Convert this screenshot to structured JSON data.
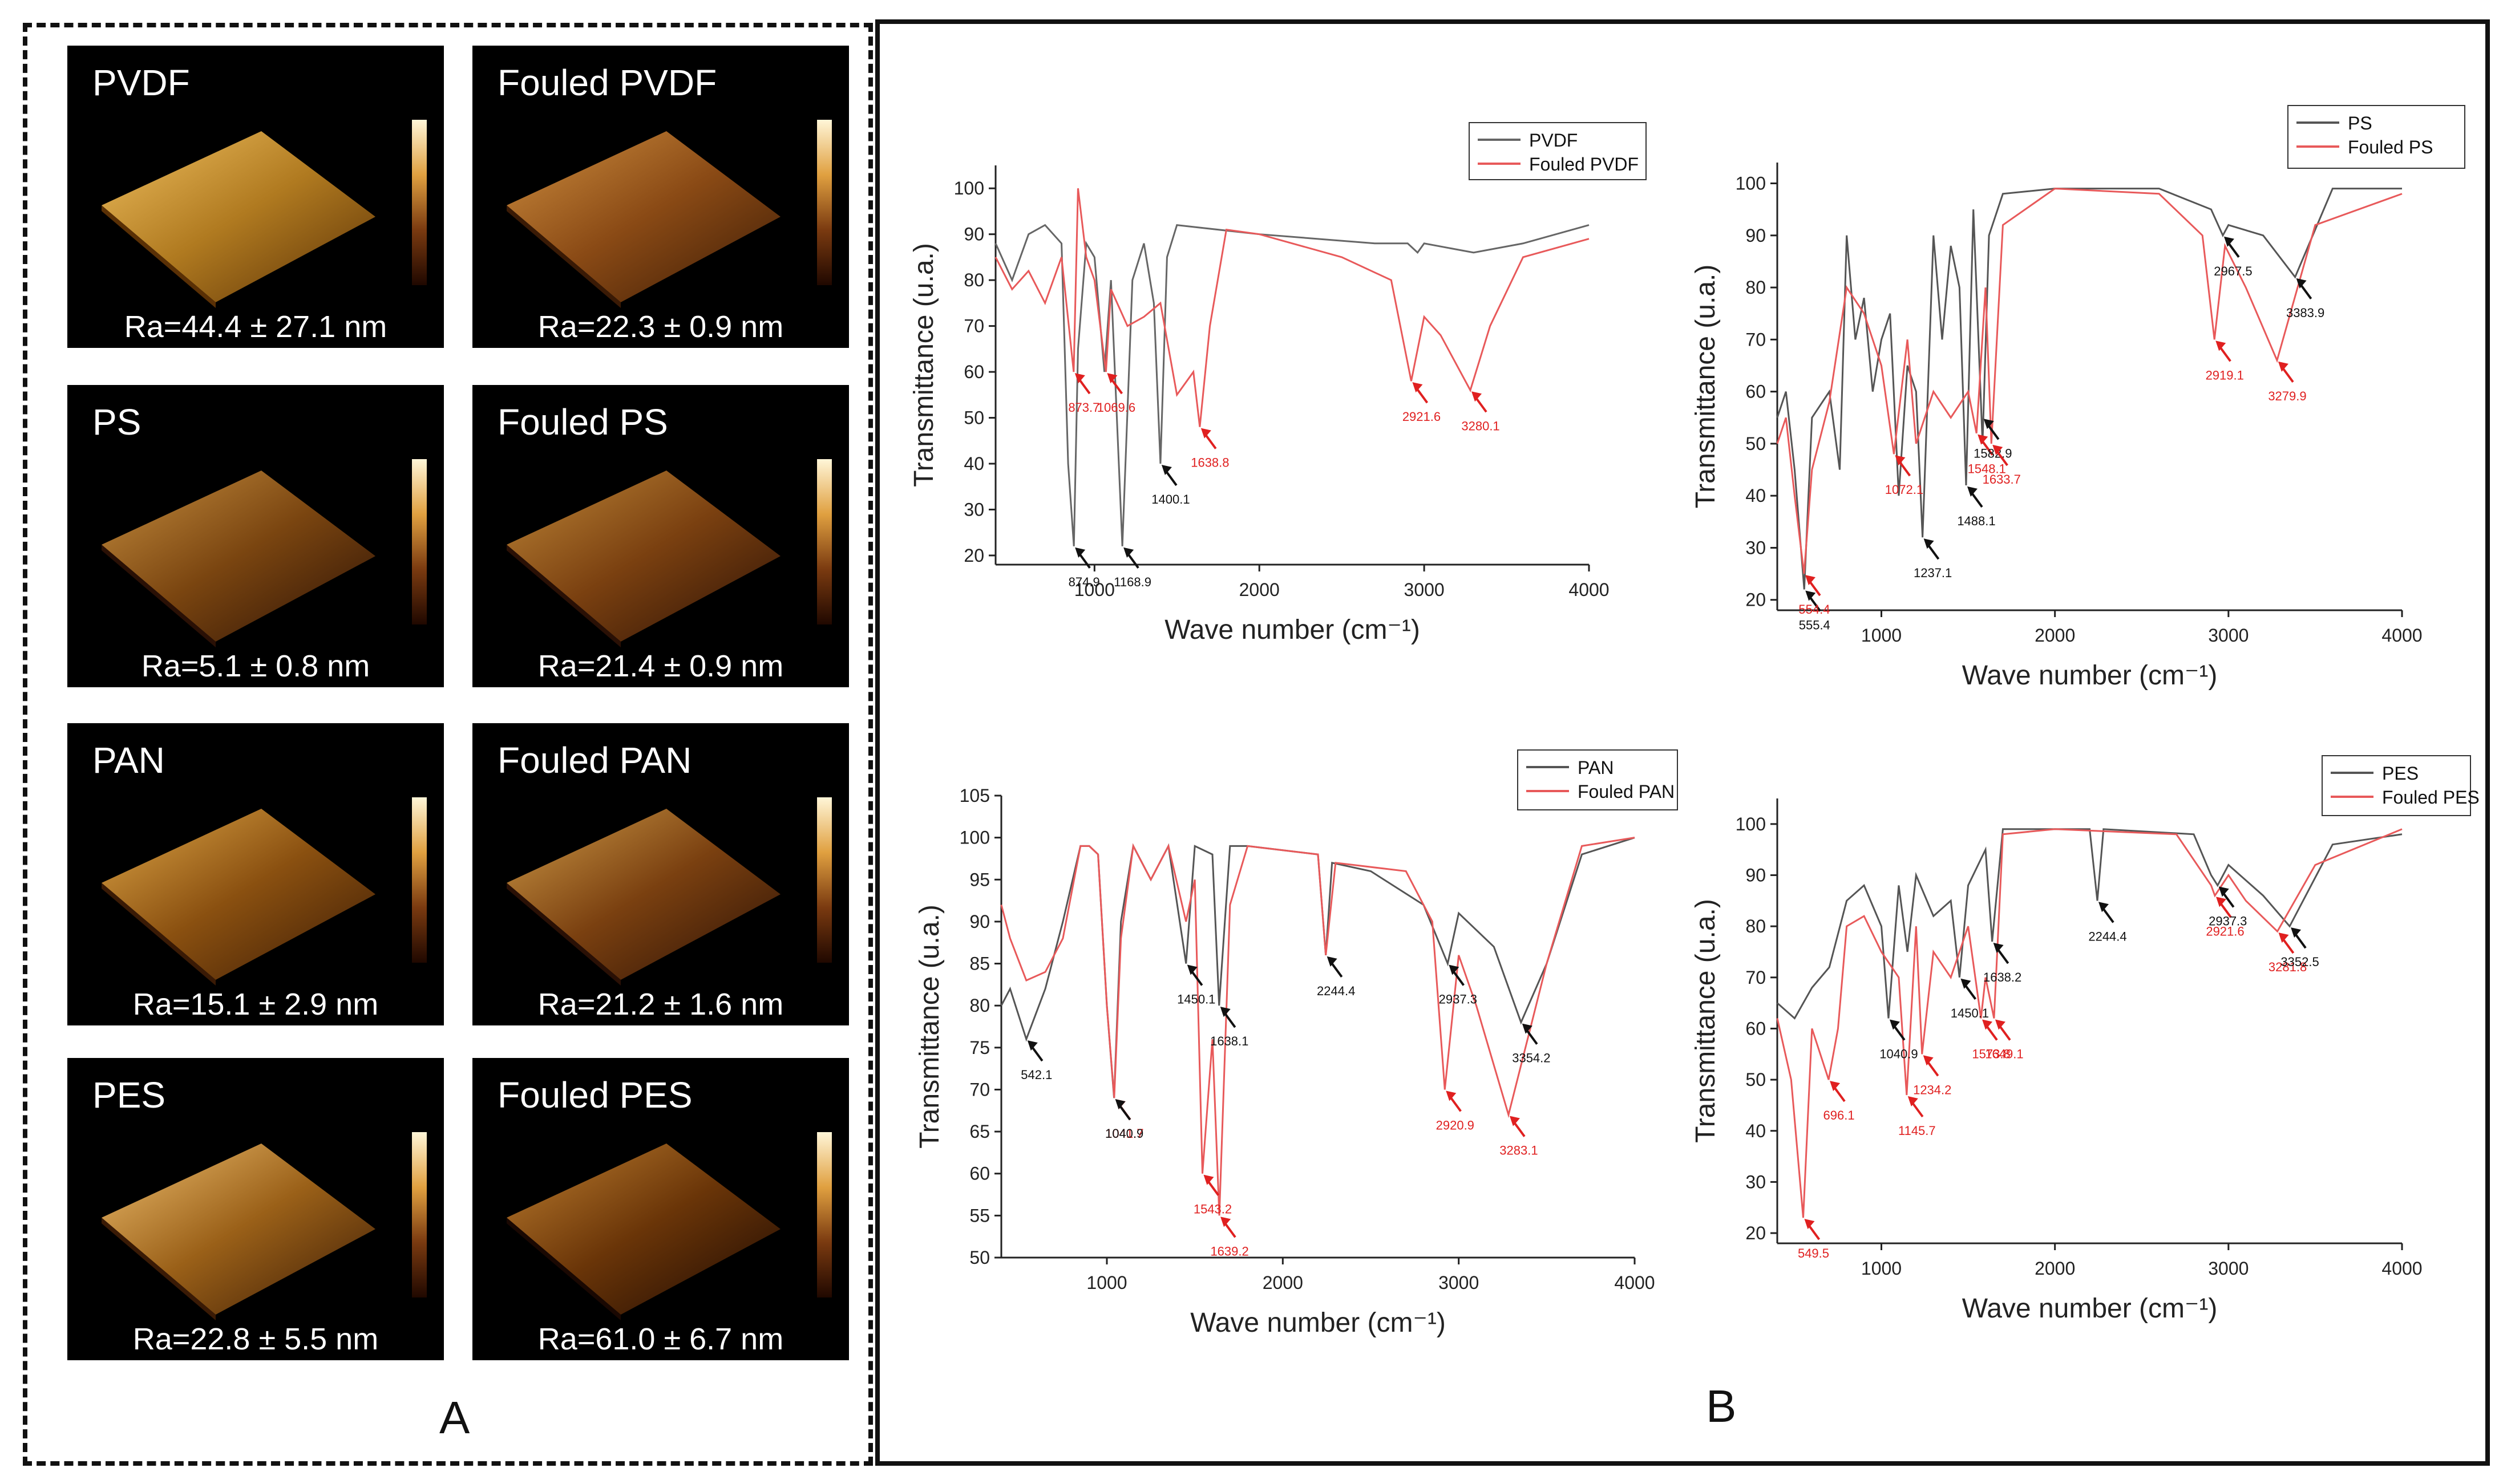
{
  "panels": {
    "a_label": "A",
    "b_label": "B"
  },
  "afm": [
    {
      "title": "PVDF",
      "ra": "Ra=44.4 ± 27.1 nm"
    },
    {
      "title": "Fouled PVDF",
      "ra": "Ra=22.3 ± 0.9 nm"
    },
    {
      "title": "PS",
      "ra": "Ra=5.1 ± 0.8 nm"
    },
    {
      "title": "Fouled PS",
      "ra": "Ra=21.4 ± 0.9 nm"
    },
    {
      "title": "PAN",
      "ra": "Ra=15.1 ± 2.9 nm"
    },
    {
      "title": "Fouled PAN",
      "ra": "Ra=21.2 ± 1.6 nm"
    },
    {
      "title": "PES",
      "ra": "Ra=22.8 ± 5.5 nm"
    },
    {
      "title": "Fouled PES",
      "ra": "Ra=61.0 ± 6.7 nm"
    }
  ],
  "chart_data": [
    {
      "type": "line",
      "xlabel": "Wave number (cm⁻¹)",
      "ylabel": "Transmittance (u.a.)",
      "xlim": [
        400,
        4000
      ],
      "ylim": [
        18,
        105
      ],
      "xticks": [
        1000,
        2000,
        3000,
        4000
      ],
      "yticks": [
        20,
        30,
        40,
        50,
        60,
        70,
        80,
        90,
        100
      ],
      "legend": [
        "PVDF",
        "Fouled PVDF"
      ],
      "legend_position": "top-right",
      "series": [
        {
          "name": "PVDF",
          "color": "#666666",
          "x": [
            400,
            500,
            600,
            700,
            800,
            840,
            874.9,
            900,
            950,
            1000,
            1060,
            1100,
            1168.9,
            1230,
            1300,
            1360,
            1400.1,
            1440,
            1500,
            2000,
            2700,
            2900,
            2960,
            3000,
            3300,
            3600,
            4000
          ],
          "y": [
            88,
            80,
            90,
            92,
            88,
            40,
            22,
            65,
            88,
            85,
            60,
            80,
            22,
            80,
            88,
            75,
            40,
            85,
            92,
            90,
            88,
            88,
            86,
            88,
            86,
            88,
            92
          ]
        },
        {
          "name": "Fouled PVDF",
          "color": "#e8595a",
          "x": [
            400,
            500,
            600,
            700,
            800,
            873.7,
            900,
            950,
            1000,
            1069.6,
            1100,
            1200,
            1300,
            1400,
            1500,
            1600,
            1638.8,
            1700,
            1800,
            2000,
            2500,
            2800,
            2921.6,
            3000,
            3100,
            3280.1,
            3400,
            3600,
            4000
          ],
          "y": [
            85,
            78,
            82,
            75,
            85,
            60,
            100,
            85,
            80,
            60,
            78,
            70,
            72,
            75,
            55,
            60,
            48,
            70,
            91,
            90,
            85,
            80,
            58,
            72,
            68,
            56,
            70,
            85,
            89
          ]
        }
      ],
      "annotations": [
        {
          "text": "873.7",
          "x": 873.7,
          "y": 60,
          "color": "red"
        },
        {
          "text": "1069.6",
          "x": 1069.6,
          "y": 60,
          "color": "red"
        },
        {
          "text": "874.9",
          "x": 874.9,
          "y": 22,
          "color": "black"
        },
        {
          "text": "1168.9",
          "x": 1168.9,
          "y": 22,
          "color": "black"
        },
        {
          "text": "1400.1",
          "x": 1400.1,
          "y": 40,
          "color": "black"
        },
        {
          "text": "1638.8",
          "x": 1638.8,
          "y": 48,
          "color": "red"
        },
        {
          "text": "2921.6",
          "x": 2921.6,
          "y": 58,
          "color": "red"
        },
        {
          "text": "3280.1",
          "x": 3280.1,
          "y": 56,
          "color": "red"
        }
      ]
    },
    {
      "type": "line",
      "xlabel": "Wave number (cm⁻¹)",
      "ylabel": "Transmittance (u.a.)",
      "xlim": [
        400,
        4000
      ],
      "ylim": [
        18,
        104
      ],
      "xticks": [
        1000,
        2000,
        3000,
        4000
      ],
      "yticks": [
        20,
        30,
        40,
        50,
        60,
        70,
        80,
        90,
        100
      ],
      "legend": [
        "PS",
        "Fouled PS"
      ],
      "legend_position": "top-right",
      "series": [
        {
          "name": "PS",
          "color": "#555555",
          "x": [
            400,
            450,
            500,
            555.4,
            600,
            700,
            760,
            800,
            850,
            900,
            950,
            1000,
            1050,
            1100,
            1150,
            1200,
            1237.1,
            1300,
            1350,
            1400,
            1450,
            1488.1,
            1530,
            1582.9,
            1620,
            1700,
            2000,
            2600,
            2900,
            2967.5,
            3000,
            3200,
            3383.9,
            3600,
            4000
          ],
          "y": [
            55,
            60,
            45,
            22,
            55,
            60,
            45,
            90,
            70,
            78,
            60,
            70,
            75,
            40,
            65,
            60,
            32,
            90,
            70,
            88,
            80,
            42,
            95,
            50,
            90,
            98,
            99,
            99,
            95,
            90,
            92,
            90,
            82,
            99,
            99
          ]
        },
        {
          "name": "Fouled PS",
          "color": "#e8595a",
          "x": [
            400,
            450,
            500,
            554.4,
            600,
            700,
            800,
            900,
            1000,
            1072.1,
            1150,
            1200,
            1300,
            1400,
            1500,
            1548.1,
            1600,
            1633.7,
            1700,
            2000,
            2600,
            2850,
            2919.1,
            2980,
            3100,
            3279.9,
            3500,
            4000
          ],
          "y": [
            50,
            55,
            40,
            25,
            45,
            58,
            80,
            75,
            65,
            48,
            70,
            50,
            60,
            55,
            60,
            52,
            80,
            50,
            92,
            99,
            98,
            90,
            70,
            88,
            80,
            66,
            92,
            98
          ]
        }
      ],
      "annotations": [
        {
          "text": "555.4",
          "x": 555.4,
          "y": 22,
          "color": "black"
        },
        {
          "text": "554.4",
          "x": 554.4,
          "y": 25,
          "color": "red"
        },
        {
          "text": "1072.1",
          "x": 1072.1,
          "y": 48,
          "color": "red"
        },
        {
          "text": "1237.1",
          "x": 1237.1,
          "y": 32,
          "color": "black"
        },
        {
          "text": "1488.1",
          "x": 1488.1,
          "y": 42,
          "color": "black"
        },
        {
          "text": "1548.1",
          "x": 1548.1,
          "y": 52,
          "color": "red"
        },
        {
          "text": "1582.9",
          "x": 1582.9,
          "y": 55,
          "color": "black"
        },
        {
          "text": "1633.7",
          "x": 1633.7,
          "y": 50,
          "color": "red"
        },
        {
          "text": "2967.5",
          "x": 2967.5,
          "y": 90,
          "color": "black"
        },
        {
          "text": "2919.1",
          "x": 2919.1,
          "y": 70,
          "color": "red"
        },
        {
          "text": "3279.9",
          "x": 3279.9,
          "y": 66,
          "color": "red"
        },
        {
          "text": "3383.9",
          "x": 3383.9,
          "y": 82,
          "color": "black"
        }
      ]
    },
    {
      "type": "line",
      "xlabel": "Wave number (cm⁻¹)",
      "ylabel": "Transmittance (u.a.)",
      "xlim": [
        400,
        4000
      ],
      "ylim": [
        50,
        105
      ],
      "xticks": [
        1000,
        2000,
        3000,
        4000
      ],
      "yticks": [
        50,
        55,
        60,
        65,
        70,
        75,
        80,
        85,
        90,
        95,
        100,
        105
      ],
      "legend": [
        "PAN",
        "Fouled PAN"
      ],
      "legend_position": "top-right",
      "series": [
        {
          "name": "PAN",
          "color": "#555555",
          "x": [
            400,
            450,
            542.1,
            650,
            750,
            850,
            900,
            950,
            1000,
            1040.9,
            1080,
            1150,
            1250,
            1350,
            1450.1,
            1500,
            1600,
            1638.1,
            1700,
            1800,
            2200,
            2244.4,
            2280,
            2500,
            2800,
            2937.3,
            3000,
            3200,
            3354.2,
            3500,
            3700,
            4000
          ],
          "y": [
            80,
            82,
            76,
            82,
            90,
            99,
            99,
            98,
            80,
            69,
            90,
            99,
            95,
            99,
            85,
            99,
            98,
            80,
            99,
            99,
            98,
            86,
            97,
            96,
            92,
            85,
            91,
            87,
            78,
            85,
            98,
            100
          ]
        },
        {
          "name": "Fouled PAN",
          "color": "#e8595a",
          "x": [
            400,
            450,
            542.1,
            650,
            750,
            850,
            900,
            950,
            1000,
            1041.7,
            1080,
            1150,
            1250,
            1350,
            1450,
            1500,
            1543.2,
            1600,
            1639.2,
            1700,
            1800,
            2200,
            2244.4,
            2300,
            2700,
            2850,
            2920.9,
            3000,
            3100,
            3283.1,
            3500,
            3700,
            4000
          ],
          "y": [
            92,
            88,
            83,
            84,
            88,
            99,
            99,
            98,
            80,
            69,
            88,
            99,
            95,
            99,
            90,
            95,
            60,
            76,
            55,
            92,
            99,
            98,
            86,
            97,
            96,
            90,
            70,
            86,
            80,
            67,
            85,
            99,
            100
          ]
        }
      ],
      "annotations": [
        {
          "text": "542.1",
          "x": 542.1,
          "y": 76,
          "color": "black"
        },
        {
          "text": "1041.7",
          "x": 1041.7,
          "y": 69,
          "color": "red"
        },
        {
          "text": "1040.9",
          "x": 1040.9,
          "y": 69,
          "color": "black"
        },
        {
          "text": "1450.1",
          "x": 1450.1,
          "y": 85,
          "color": "black"
        },
        {
          "text": "1543.2",
          "x": 1543.2,
          "y": 60,
          "color": "red"
        },
        {
          "text": "1638.1",
          "x": 1638.1,
          "y": 80,
          "color": "black"
        },
        {
          "text": "1639.2",
          "x": 1639.2,
          "y": 55,
          "color": "red"
        },
        {
          "text": "2244.4",
          "x": 2244.4,
          "y": 86,
          "color": "black"
        },
        {
          "text": "2920.9",
          "x": 2920.9,
          "y": 70,
          "color": "red"
        },
        {
          "text": "2937.3",
          "x": 2937.3,
          "y": 85,
          "color": "black"
        },
        {
          "text": "3283.1",
          "x": 3283.1,
          "y": 67,
          "color": "red"
        },
        {
          "text": "3354.2",
          "x": 3354.2,
          "y": 78,
          "color": "black"
        }
      ]
    },
    {
      "type": "line",
      "xlabel": "Wave number (cm⁻¹)",
      "ylabel": "Transmittance (u.a.)",
      "xlim": [
        400,
        4000
      ],
      "ylim": [
        18,
        105
      ],
      "xticks": [
        1000,
        2000,
        3000,
        4000
      ],
      "yticks": [
        20,
        30,
        40,
        50,
        60,
        70,
        80,
        90,
        100
      ],
      "legend": [
        "PES",
        "Fouled PES"
      ],
      "legend_position": "top-right",
      "series": [
        {
          "name": "PES",
          "color": "#555555",
          "x": [
            400,
            500,
            600,
            700,
            800,
            900,
            1000,
            1040.9,
            1100,
            1150,
            1200,
            1300,
            1400,
            1450.1,
            1500,
            1600,
            1638.2,
            1700,
            2000,
            2200,
            2244.4,
            2280,
            2800,
            2900,
            2937.3,
            3000,
            3200,
            3352.5,
            3600,
            4000
          ],
          "y": [
            65,
            62,
            68,
            72,
            85,
            88,
            80,
            62,
            88,
            75,
            90,
            82,
            85,
            70,
            88,
            95,
            77,
            99,
            99,
            99,
            85,
            99,
            98,
            90,
            88,
            92,
            86,
            80,
            96,
            98
          ]
        },
        {
          "name": "Fouled PES",
          "color": "#e8595a",
          "x": [
            400,
            480,
            549.5,
            600,
            696.1,
            750,
            800,
            900,
            1000,
            1100,
            1145.7,
            1200,
            1234.2,
            1300,
            1400,
            1500,
            1573.8,
            1600,
            1649.1,
            1700,
            2000,
            2700,
            2900,
            2921.6,
            3000,
            3100,
            3281.8,
            3500,
            4000
          ],
          "y": [
            62,
            50,
            23,
            60,
            50,
            60,
            80,
            82,
            75,
            70,
            47,
            80,
            55,
            75,
            70,
            80,
            62,
            70,
            62,
            98,
            99,
            98,
            88,
            86,
            90,
            85,
            79,
            92,
            99
          ]
        }
      ],
      "annotations": [
        {
          "text": "549.5",
          "x": 549.5,
          "y": 23,
          "color": "red"
        },
        {
          "text": "696.1",
          "x": 696.1,
          "y": 50,
          "color": "red"
        },
        {
          "text": "1040.9",
          "x": 1040.9,
          "y": 62,
          "color": "black"
        },
        {
          "text": "1145.7",
          "x": 1145.7,
          "y": 47,
          "color": "red"
        },
        {
          "text": "1234.2",
          "x": 1234.2,
          "y": 55,
          "color": "red"
        },
        {
          "text": "1450.1",
          "x": 1450.1,
          "y": 70,
          "color": "black"
        },
        {
          "text": "1573.8",
          "x": 1573.8,
          "y": 62,
          "color": "red"
        },
        {
          "text": "1649.1",
          "x": 1649.1,
          "y": 62,
          "color": "red"
        },
        {
          "text": "1638.2",
          "x": 1638.2,
          "y": 77,
          "color": "black"
        },
        {
          "text": "2244.4",
          "x": 2244.4,
          "y": 85,
          "color": "black"
        },
        {
          "text": "2921.6",
          "x": 2921.6,
          "y": 86,
          "color": "red"
        },
        {
          "text": "2937.3",
          "x": 2937.3,
          "y": 88,
          "color": "black"
        },
        {
          "text": "3281.8",
          "x": 3281.8,
          "y": 79,
          "color": "red"
        },
        {
          "text": "3352.5",
          "x": 3352.5,
          "y": 80,
          "color": "black"
        }
      ]
    }
  ]
}
